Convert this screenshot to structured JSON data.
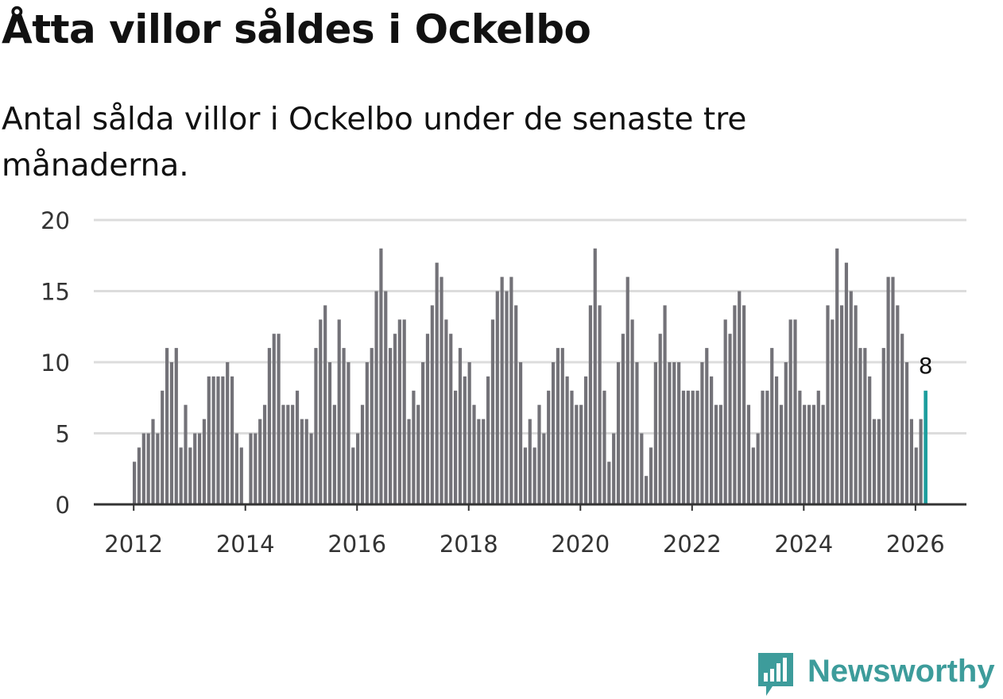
{
  "title": "Åtta villor såldes i Ockelbo",
  "subtitle": "Antal sålda villor i Ockelbo under de senaste tre månaderna.",
  "colors": {
    "bar": "#737278",
    "highlight": "#1b9d9d",
    "grid": "#dcdcdc",
    "axis": "#333333",
    "brand": "#3d9c9b"
  },
  "brand": {
    "name": "Newsworthy",
    "icon": "newsworthy-logo-icon"
  },
  "chart_data": {
    "type": "bar",
    "title": "Åtta villor såldes i Ockelbo",
    "xlabel": "",
    "ylabel": "",
    "ylim": [
      0,
      20
    ],
    "yticks": [
      0,
      5,
      10,
      15,
      20
    ],
    "xticks": [
      "2012",
      "2014",
      "2016",
      "2018",
      "2020",
      "2022",
      "2024",
      "2026"
    ],
    "grid": true,
    "start": "2012-01",
    "frequency": "monthly",
    "highlight": {
      "period": "2026-03",
      "value": 8,
      "label": "8"
    },
    "values": [
      3,
      4,
      5,
      5,
      6,
      5,
      8,
      11,
      10,
      11,
      4,
      7,
      4,
      5,
      5,
      6,
      9,
      9,
      9,
      9,
      10,
      9,
      5,
      4,
      null,
      5,
      5,
      6,
      7,
      11,
      12,
      12,
      7,
      7,
      7,
      8,
      6,
      6,
      5,
      11,
      13,
      14,
      10,
      7,
      13,
      11,
      10,
      4,
      5,
      7,
      10,
      11,
      15,
      18,
      15,
      11,
      12,
      13,
      13,
      6,
      8,
      7,
      10,
      12,
      14,
      17,
      16,
      13,
      12,
      8,
      11,
      9,
      10,
      7,
      6,
      6,
      9,
      13,
      15,
      16,
      15,
      16,
      14,
      10,
      4,
      6,
      4,
      7,
      5,
      8,
      10,
      11,
      11,
      9,
      8,
      7,
      7,
      9,
      14,
      18,
      14,
      8,
      3,
      5,
      10,
      12,
      16,
      13,
      10,
      5,
      2,
      4,
      10,
      12,
      14,
      10,
      10,
      10,
      8,
      8,
      8,
      8,
      10,
      11,
      9,
      7,
      7,
      13,
      12,
      14,
      15,
      14,
      7,
      4,
      5,
      8,
      8,
      11,
      9,
      7,
      10,
      13,
      13,
      8,
      7,
      7,
      7,
      8,
      7,
      14,
      13,
      18,
      14,
      17,
      15,
      14,
      11,
      11,
      9,
      6,
      6,
      11,
      16,
      16,
      14,
      12,
      10,
      6,
      4,
      6,
      8
    ]
  }
}
